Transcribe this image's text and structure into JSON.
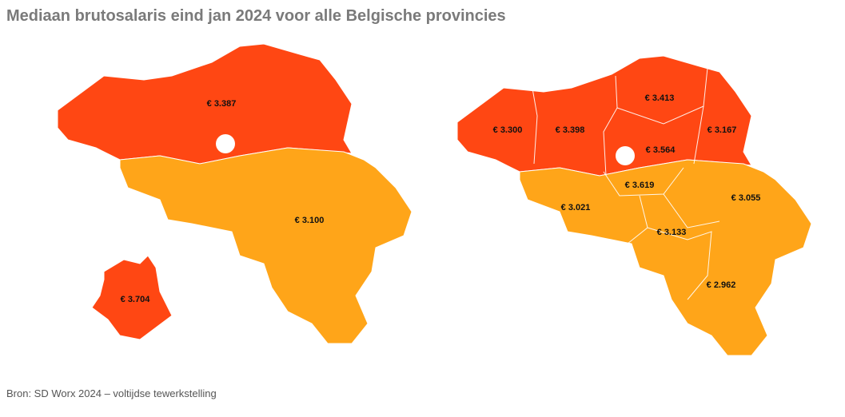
{
  "title": "Mediaan brutosalaris eind jan 2024 voor alle Belgische provincies",
  "source": "Bron: SD Worx 2024 – voltijdse tewerkstelling",
  "maps": [
    {
      "regions": [
        {
          "label": "€ 3.387"
        },
        {
          "label": "€ 3.100"
        },
        {
          "label": "€ 3.704"
        }
      ]
    },
    {
      "regions": [
        {
          "label": "€ 3.300"
        },
        {
          "label": "€ 3.398"
        },
        {
          "label": "€ 3.413"
        },
        {
          "label": "€ 3.564"
        },
        {
          "label": "€ 3.167"
        },
        {
          "label": "€ 3.619"
        },
        {
          "label": "€ 3.021"
        },
        {
          "label": "€ 3.055"
        },
        {
          "label": "€ 3.133"
        },
        {
          "label": "€ 2.962"
        }
      ]
    }
  ]
}
